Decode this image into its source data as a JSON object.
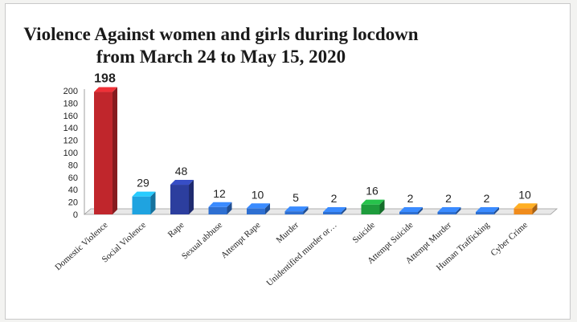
{
  "chart_data": {
    "type": "bar",
    "title_line1": "Violence Against women and girls during locdown",
    "title_line2": "from March 24 to May 15, 2020",
    "categories": [
      "Domestic Violence",
      "Social Violence",
      "Rape",
      "Sexual abbuse",
      "Attempt Rape",
      "Murder",
      "Unidentified murder or…",
      "Suicide",
      "Attempt Suicide",
      "Attempt Murder",
      "Human Trafficking",
      "Cyber Crime"
    ],
    "values": [
      198,
      29,
      48,
      12,
      10,
      5,
      2,
      16,
      2,
      2,
      2,
      10
    ],
    "colors": [
      "#c0262c",
      "#1fa3e0",
      "#2c3e9e",
      "#2e6fd1",
      "#2e6fd1",
      "#2e6fd1",
      "#2e6fd1",
      "#1e9c3c",
      "#2e6fd1",
      "#2e6fd1",
      "#2e6fd1",
      "#f08c1c"
    ],
    "yticks": [
      0,
      20,
      40,
      60,
      80,
      100,
      120,
      140,
      160,
      180,
      200
    ],
    "ylim": [
      0,
      200
    ],
    "grid": false,
    "legend": "none"
  }
}
